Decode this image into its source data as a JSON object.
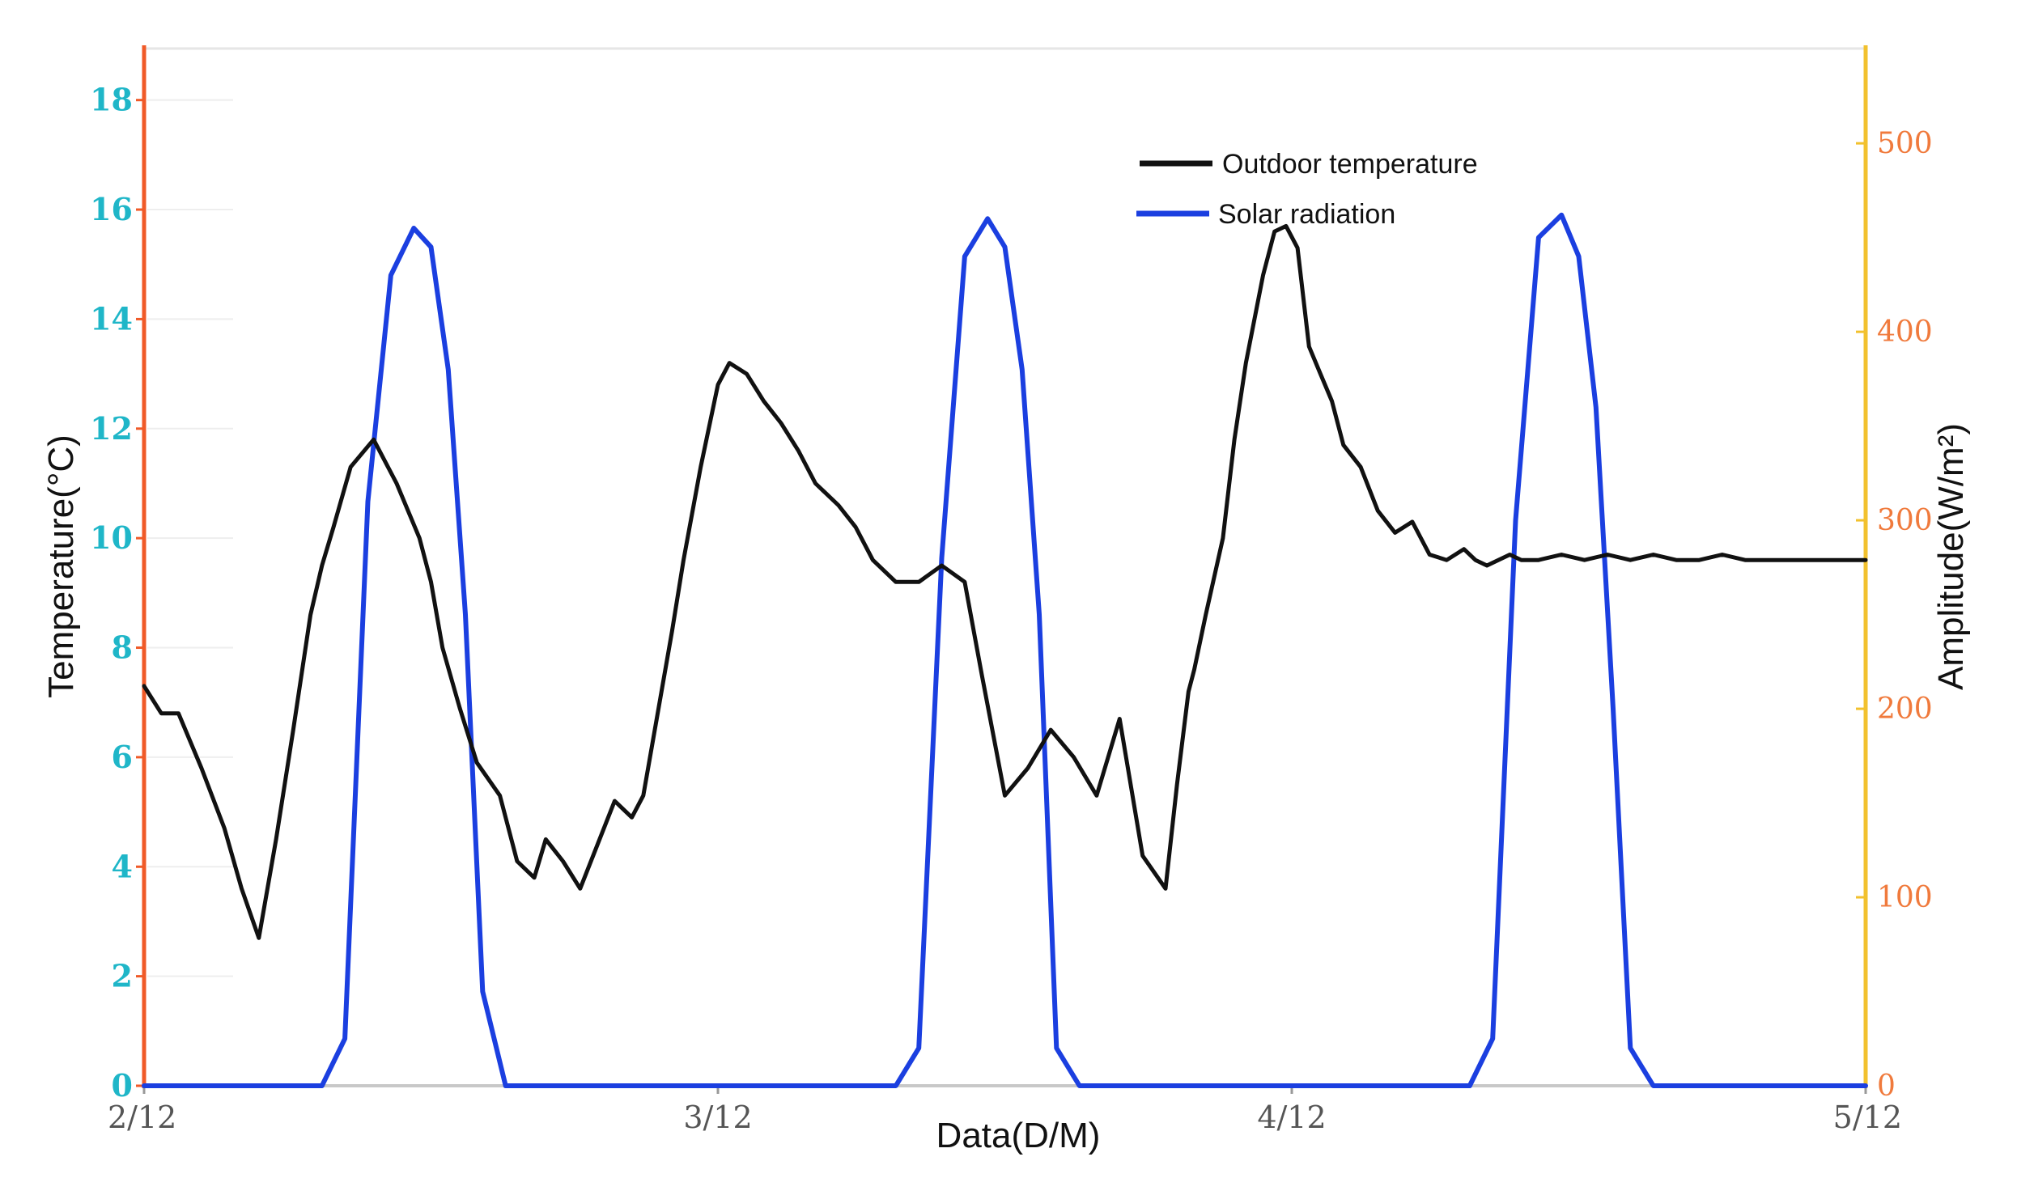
{
  "chart_data": {
    "type": "line",
    "title": "",
    "xlabel": "Data(D/M)",
    "ylabel_left": "Temperature(°C)",
    "ylabel_right": "Amplitude(W/m²)",
    "x_tick_labels": [
      "2/12",
      "3/12",
      "4/12",
      "5/12"
    ],
    "x_range_days": [
      0,
      3
    ],
    "ylim_left": [
      0,
      19
    ],
    "ylim_right": [
      0,
      552
    ],
    "y_ticks_left": [
      "0",
      "2",
      "4",
      "6",
      "8",
      "10",
      "12",
      "14",
      "16",
      "18"
    ],
    "y_ticks_right": [
      "0",
      "100",
      "200",
      "300",
      "400",
      "500"
    ],
    "legend_position": "top-center",
    "grid": false,
    "colors": {
      "temperature": "#111111",
      "radiation": "#1b3fe0",
      "left_axis": "#f05a28",
      "right_axis": "#f2c12e",
      "left_ticks": "#1fb6c8",
      "right_ticks": "#f07a3c"
    },
    "series": [
      {
        "name": "Outdoor temperature",
        "axis": "left",
        "x": [
          0,
          0.03,
          0.06,
          0.1,
          0.14,
          0.17,
          0.2,
          0.23,
          0.26,
          0.29,
          0.31,
          0.33,
          0.36,
          0.4,
          0.44,
          0.48,
          0.5,
          0.52,
          0.55,
          0.58,
          0.62,
          0.65,
          0.68,
          0.7,
          0.73,
          0.76,
          0.79,
          0.82,
          0.85,
          0.87,
          0.89,
          0.92,
          0.94,
          0.97,
          1.0,
          1.02,
          1.05,
          1.08,
          1.11,
          1.14,
          1.17,
          1.21,
          1.24,
          1.27,
          1.31,
          1.35,
          1.39,
          1.43,
          1.46,
          1.5,
          1.54,
          1.58,
          1.62,
          1.66,
          1.7,
          1.74,
          1.78,
          1.8,
          1.82,
          1.83,
          1.85,
          1.88,
          1.9,
          1.92,
          1.95,
          1.97,
          1.99,
          2.01,
          2.03,
          2.05,
          2.07,
          2.09,
          2.12,
          2.15,
          2.18,
          2.21,
          2.24,
          2.27,
          2.3,
          2.32,
          2.34,
          2.36,
          2.38,
          2.4,
          2.43,
          2.47,
          2.51,
          2.55,
          2.59,
          2.63,
          2.67,
          2.71,
          2.75,
          2.79,
          2.83,
          2.87,
          2.91,
          2.95,
          3.0
        ],
        "values": [
          7.3,
          6.8,
          6.8,
          5.8,
          4.7,
          3.6,
          2.7,
          4.5,
          6.5,
          8.6,
          9.5,
          10.2,
          11.3,
          11.8,
          11.0,
          10.0,
          9.2,
          8.0,
          6.9,
          5.9,
          5.3,
          4.1,
          3.8,
          4.5,
          4.1,
          3.6,
          4.4,
          5.2,
          4.9,
          5.3,
          6.5,
          8.3,
          9.6,
          11.3,
          12.8,
          13.2,
          13.0,
          12.5,
          12.1,
          11.6,
          11.0,
          10.6,
          10.2,
          9.6,
          9.2,
          9.2,
          9.5,
          9.2,
          7.5,
          5.3,
          5.8,
          6.5,
          6.0,
          5.3,
          6.7,
          4.2,
          3.6,
          5.5,
          7.2,
          7.6,
          8.6,
          10.0,
          11.8,
          13.2,
          14.8,
          15.6,
          15.7,
          15.3,
          13.5,
          13.0,
          12.5,
          11.7,
          11.3,
          10.5,
          10.1,
          10.3,
          9.7,
          9.6,
          9.8,
          9.6,
          9.5,
          9.6,
          9.7,
          9.6,
          9.6,
          9.7,
          9.6,
          9.7,
          9.6,
          9.7,
          9.6,
          9.6,
          9.7,
          9.6,
          9.6,
          9.6,
          9.6,
          9.6,
          9.6
        ]
      },
      {
        "name": "Solar radiation",
        "axis": "right",
        "x": [
          0,
          0.31,
          0.35,
          0.39,
          0.43,
          0.47,
          0.5,
          0.53,
          0.56,
          0.59,
          0.63,
          0.67,
          0.72,
          1.31,
          1.35,
          1.39,
          1.43,
          1.47,
          1.5,
          1.53,
          1.56,
          1.59,
          1.63,
          1.67,
          1.72,
          2.31,
          2.35,
          2.39,
          2.43,
          2.47,
          2.5,
          2.53,
          2.56,
          2.59,
          2.63,
          2.67,
          2.72,
          3.0
        ],
        "values": [
          0,
          0,
          25,
          310,
          430,
          455,
          445,
          380,
          250,
          50,
          0,
          0,
          0,
          0,
          20,
          280,
          440,
          460,
          445,
          380,
          250,
          20,
          0,
          0,
          0,
          0,
          25,
          300,
          450,
          462,
          440,
          360,
          200,
          20,
          0,
          0,
          0,
          0
        ]
      }
    ]
  }
}
